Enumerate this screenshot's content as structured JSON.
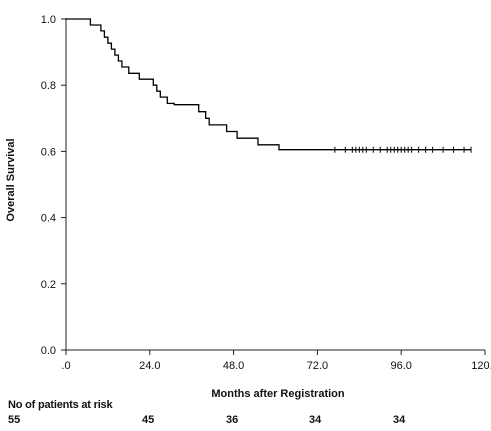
{
  "chart_data": {
    "type": "line",
    "subtype": "kaplan-meier",
    "xlabel": "Months after Registration",
    "ylabel": "Overall Survival",
    "xlim": [
      0,
      120
    ],
    "ylim": [
      0,
      1
    ],
    "x_ticks": [
      0,
      24,
      48,
      72,
      96,
      120
    ],
    "x_tick_labels": [
      ".0",
      "24.0",
      "48.0",
      "72.0",
      "96.0",
      "120.0"
    ],
    "y_ticks": [
      0,
      0.2,
      0.4,
      0.6,
      0.8,
      1.0
    ],
    "y_tick_labels": [
      "0.0",
      "0.2",
      "0.4",
      "0.6",
      "0.8",
      "1.0"
    ],
    "grid": false,
    "series": [
      {
        "steps": [
          [
            0,
            1.0
          ],
          [
            7,
            0.982
          ],
          [
            10,
            0.964
          ],
          [
            11,
            0.945
          ],
          [
            12,
            0.927
          ],
          [
            13,
            0.909
          ],
          [
            14,
            0.891
          ],
          [
            15,
            0.873
          ],
          [
            16,
            0.855
          ],
          [
            18,
            0.836
          ],
          [
            21,
            0.818
          ],
          [
            25,
            0.8
          ],
          [
            26,
            0.782
          ],
          [
            27,
            0.764
          ],
          [
            29,
            0.745
          ],
          [
            31,
            0.741
          ],
          [
            38,
            0.72
          ],
          [
            40,
            0.7
          ],
          [
            41,
            0.68
          ],
          [
            46,
            0.66
          ],
          [
            49,
            0.64
          ],
          [
            55,
            0.62
          ],
          [
            61,
            0.605
          ],
          [
            116,
            0.605
          ]
        ],
        "censored": [
          77,
          80,
          82,
          83,
          84,
          85,
          86,
          88,
          90,
          92,
          93,
          94,
          95,
          96,
          97,
          98,
          99,
          101,
          103,
          105,
          108,
          111,
          114,
          116
        ],
        "color": "#000000"
      }
    ],
    "risk_table": {
      "title": "No of patients at risk",
      "times": [
        0,
        24,
        48,
        72,
        96
      ],
      "counts": [
        "55",
        "45",
        "36",
        "34",
        "34"
      ]
    }
  }
}
